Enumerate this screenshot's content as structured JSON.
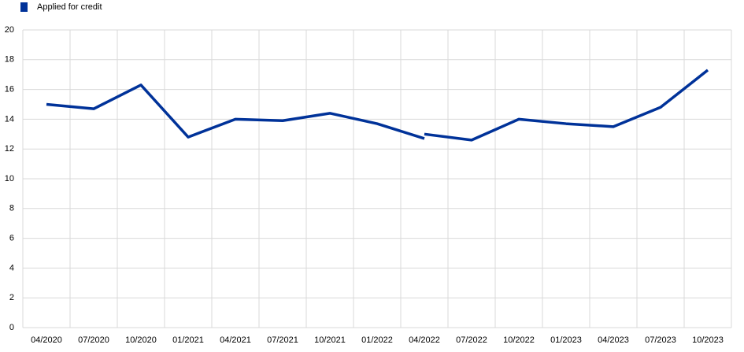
{
  "chart_data": {
    "type": "line",
    "categories": [
      "04/2020",
      "07/2020",
      "10/2020",
      "01/2021",
      "04/2021",
      "07/2021",
      "10/2021",
      "01/2022",
      "04/2022",
      "07/2022",
      "10/2022",
      "01/2023",
      "04/2023",
      "07/2023",
      "10/2023"
    ],
    "series": [
      {
        "name": "Applied for credit",
        "color": "#003299",
        "values": [
          15.0,
          14.7,
          16.3,
          12.8,
          14.0,
          13.9,
          14.4,
          13.7,
          12.7,
          null,
          null,
          null,
          null,
          null,
          null
        ]
      },
      {
        "name": "Applied for credit",
        "color": "#003299",
        "values": [
          null,
          null,
          null,
          null,
          null,
          null,
          null,
          null,
          13.0,
          12.6,
          14.0,
          13.7,
          13.5,
          14.8,
          17.3
        ]
      }
    ],
    "ylim": [
      0,
      20
    ],
    "yticks": [
      0,
      2,
      4,
      6,
      8,
      10,
      12,
      14,
      16,
      18,
      20
    ],
    "grid": true
  }
}
